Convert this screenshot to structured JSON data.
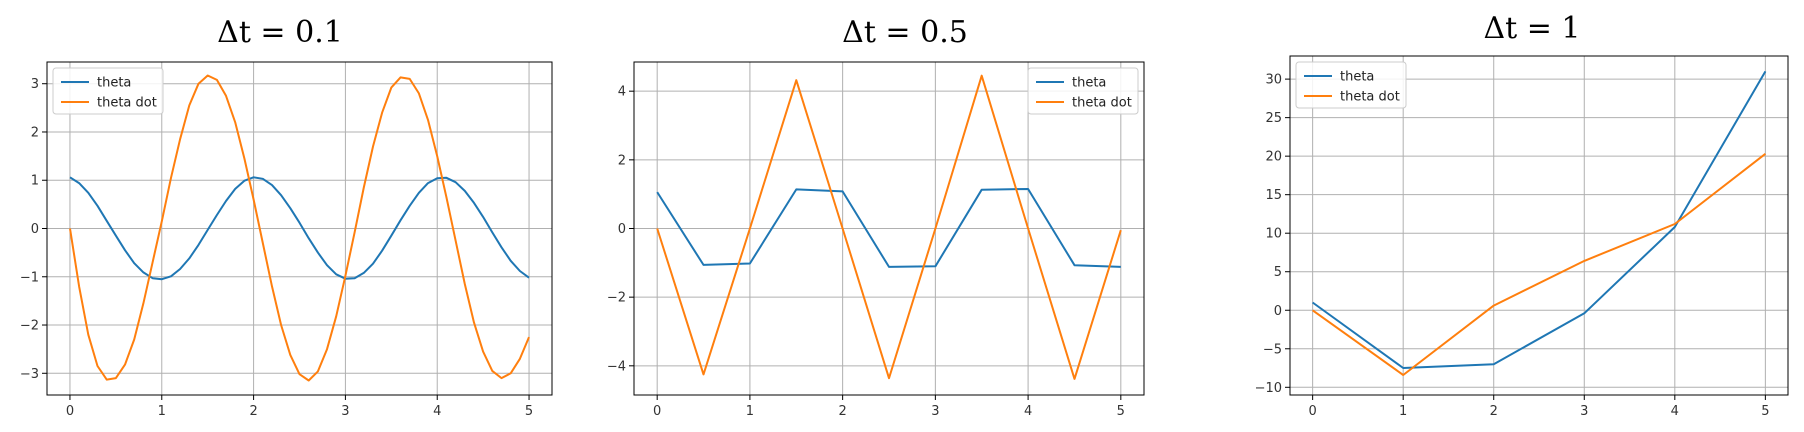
{
  "colors": {
    "theta": "#1f77b4",
    "theta_dot": "#ff7f0e",
    "grid": "#b0b0b0",
    "axes": "#000000"
  },
  "chart_data": [
    {
      "type": "line",
      "title": "Δt = 0.1",
      "xlabel": "",
      "ylabel": "",
      "xlim": [
        -0.25,
        5.25
      ],
      "ylim": [
        -3.45,
        3.45
      ],
      "xticks": [
        0,
        1,
        2,
        3,
        4,
        5
      ],
      "yticks": [
        -3,
        -2,
        -1,
        0,
        1,
        2,
        3
      ],
      "tick_labels_x": [
        "0",
        "1",
        "2",
        "3",
        "4",
        "5"
      ],
      "tick_labels_y": [
        "−3",
        "−2",
        "−1",
        "0",
        "1",
        "2",
        "3"
      ],
      "grid": true,
      "legend_position": "upper-left",
      "x": [
        0,
        0.1,
        0.2,
        0.3,
        0.4,
        0.5,
        0.6,
        0.7,
        0.8,
        0.9,
        1.0,
        1.1,
        1.2,
        1.3,
        1.4,
        1.5,
        1.6,
        1.7,
        1.8,
        1.9,
        2.0,
        2.1,
        2.2,
        2.3,
        2.4,
        2.5,
        2.6,
        2.7,
        2.8,
        2.9,
        3.0,
        3.1,
        3.2,
        3.3,
        3.4,
        3.5,
        3.6,
        3.7,
        3.8,
        3.9,
        4.0,
        4.1,
        4.2,
        4.3,
        4.4,
        4.5,
        4.6,
        4.7,
        4.8,
        4.9,
        5.0
      ],
      "series": [
        {
          "name": "theta",
          "color": "#1f77b4",
          "values": [
            1.06,
            0.94,
            0.74,
            0.47,
            0.16,
            -0.15,
            -0.45,
            -0.72,
            -0.91,
            -1.03,
            -1.05,
            -0.99,
            -0.84,
            -0.62,
            -0.34,
            -0.03,
            0.28,
            0.57,
            0.82,
            0.99,
            1.06,
            1.03,
            0.9,
            0.69,
            0.42,
            0.12,
            -0.2,
            -0.5,
            -0.76,
            -0.95,
            -1.04,
            -1.03,
            -0.92,
            -0.73,
            -0.46,
            -0.15,
            0.17,
            0.47,
            0.74,
            0.94,
            1.04,
            1.05,
            0.96,
            0.78,
            0.53,
            0.24,
            -0.08,
            -0.39,
            -0.67,
            -0.88,
            -1.02
          ]
        },
        {
          "name": "theta dot",
          "color": "#ff7f0e",
          "values": [
            0.0,
            -1.2,
            -2.2,
            -2.85,
            -3.13,
            -3.1,
            -2.82,
            -2.3,
            -1.55,
            -0.7,
            0.15,
            1.05,
            1.85,
            2.55,
            3.0,
            3.17,
            3.08,
            2.75,
            2.2,
            1.45,
            0.6,
            -0.3,
            -1.2,
            -2.0,
            -2.62,
            -3.02,
            -3.15,
            -2.96,
            -2.5,
            -1.82,
            -0.98,
            -0.08,
            0.85,
            1.7,
            2.4,
            2.92,
            3.13,
            3.1,
            2.8,
            2.25,
            1.5,
            0.65,
            -0.25,
            -1.15,
            -1.95,
            -2.55,
            -2.95,
            -3.1,
            -3.0,
            -2.7,
            -2.25
          ]
        }
      ]
    },
    {
      "type": "line",
      "title": "Δt = 0.5",
      "xlabel": "",
      "ylabel": "",
      "xlim": [
        -0.25,
        5.25
      ],
      "ylim": [
        -4.85,
        4.85
      ],
      "xticks": [
        0,
        1,
        2,
        3,
        4,
        5
      ],
      "yticks": [
        -4,
        -2,
        0,
        2,
        4
      ],
      "tick_labels_x": [
        "0",
        "1",
        "2",
        "3",
        "4",
        "5"
      ],
      "tick_labels_y": [
        "−4",
        "−2",
        "0",
        "2",
        "4"
      ],
      "grid": true,
      "legend_position": "upper-right",
      "x": [
        0,
        0.5,
        1.0,
        1.5,
        2.0,
        2.5,
        3.0,
        3.5,
        4.0,
        4.5,
        5.0
      ],
      "series": [
        {
          "name": "theta",
          "color": "#1f77b4",
          "values": [
            1.06,
            -1.06,
            -1.02,
            1.14,
            1.08,
            -1.12,
            -1.1,
            1.13,
            1.15,
            -1.07,
            -1.12
          ]
        },
        {
          "name": "theta dot",
          "color": "#ff7f0e",
          "values": [
            0.0,
            -4.25,
            0.0,
            4.32,
            0.0,
            -4.36,
            0.0,
            4.45,
            0.0,
            -4.38,
            -0.05
          ]
        }
      ]
    },
    {
      "type": "line",
      "title": "Δt = 1",
      "xlabel": "",
      "ylabel": "",
      "xlim": [
        -0.25,
        5.25
      ],
      "ylim": [
        -11,
        33
      ],
      "xticks": [
        0,
        1,
        2,
        3,
        4,
        5
      ],
      "yticks": [
        -10,
        -5,
        0,
        5,
        10,
        15,
        20,
        25,
        30
      ],
      "tick_labels_x": [
        "0",
        "1",
        "2",
        "3",
        "4",
        "5"
      ],
      "tick_labels_y": [
        "−10",
        "−5",
        "0",
        "5",
        "10",
        "15",
        "20",
        "25",
        "30"
      ],
      "grid": true,
      "legend_position": "upper-left",
      "x": [
        0,
        1,
        2,
        3,
        4,
        5
      ],
      "series": [
        {
          "name": "theta",
          "color": "#1f77b4",
          "values": [
            1.0,
            -7.5,
            -7.0,
            -0.4,
            10.8,
            31.0
          ]
        },
        {
          "name": "theta dot",
          "color": "#ff7f0e",
          "values": [
            0.0,
            -8.4,
            0.6,
            6.4,
            11.2,
            20.3
          ]
        }
      ]
    }
  ]
}
